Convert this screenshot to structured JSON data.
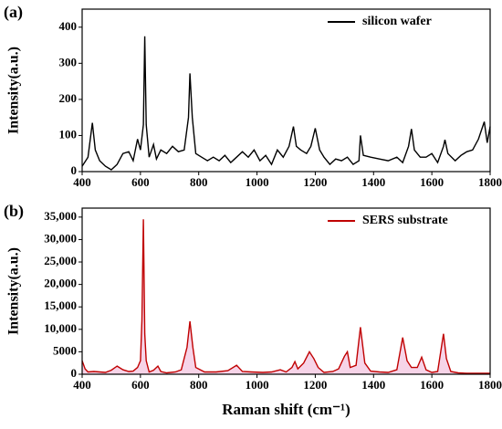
{
  "chart_data": [
    {
      "type": "line",
      "annotation": "(a)",
      "ylabel": "Intensity(a.u.)",
      "legend": "upper right",
      "xlim": [
        400,
        1800
      ],
      "xticks": [
        400,
        600,
        800,
        1000,
        1200,
        1400,
        1600,
        1800
      ],
      "ylim": [
        0,
        450
      ],
      "yticks": [
        0,
        100,
        200,
        300,
        400
      ],
      "series": [
        {
          "name": "silicon wafer",
          "color": "#000000",
          "x": [
            400,
            420,
            435,
            445,
            460,
            480,
            500,
            520,
            540,
            560,
            575,
            590,
            600,
            610,
            615,
            620,
            630,
            645,
            655,
            670,
            690,
            710,
            730,
            750,
            765,
            770,
            778,
            790,
            810,
            830,
            850,
            870,
            890,
            910,
            930,
            950,
            970,
            990,
            1010,
            1030,
            1050,
            1070,
            1090,
            1110,
            1125,
            1135,
            1150,
            1170,
            1185,
            1200,
            1215,
            1230,
            1250,
            1270,
            1290,
            1310,
            1330,
            1350,
            1355,
            1365,
            1390,
            1420,
            1450,
            1480,
            1500,
            1520,
            1530,
            1540,
            1560,
            1580,
            1600,
            1620,
            1640,
            1645,
            1655,
            1680,
            1700,
            1720,
            1740,
            1760,
            1780,
            1790,
            1800
          ],
          "values": [
            15,
            40,
            135,
            60,
            30,
            15,
            5,
            20,
            50,
            55,
            30,
            90,
            60,
            130,
            375,
            130,
            40,
            75,
            35,
            60,
            50,
            70,
            55,
            60,
            150,
            272,
            150,
            50,
            40,
            30,
            40,
            30,
            45,
            25,
            40,
            55,
            40,
            60,
            30,
            45,
            20,
            60,
            40,
            70,
            125,
            70,
            60,
            50,
            70,
            120,
            60,
            40,
            20,
            35,
            30,
            40,
            20,
            30,
            100,
            45,
            40,
            35,
            30,
            40,
            25,
            70,
            118,
            60,
            40,
            40,
            50,
            25,
            70,
            88,
            50,
            30,
            45,
            55,
            60,
            90,
            138,
            80,
            125
          ]
        }
      ]
    },
    {
      "type": "line",
      "annotation": "(b)",
      "ylabel": "Intensity(a.u.)",
      "xlabel": "Raman shift (cm⁻¹)",
      "legend": "upper right",
      "fill": "#f0b8d8",
      "xlim": [
        400,
        1800
      ],
      "xticks": [
        400,
        600,
        800,
        1000,
        1200,
        1400,
        1600,
        1800
      ],
      "ylim": [
        0,
        37000
      ],
      "yticks": [
        0,
        5000,
        {
          "value": 10000,
          "label": "10,000"
        },
        {
          "value": 15000,
          "label": "15,000"
        },
        {
          "value": 20000,
          "label": "20,000"
        },
        {
          "value": 25000,
          "label": "25,000"
        },
        {
          "value": 30000,
          "label": "30,000"
        },
        {
          "value": 35000,
          "label": "35,000"
        }
      ],
      "series": [
        {
          "name": "SERS substrate",
          "color": "#c00000",
          "x": [
            400,
            410,
            420,
            440,
            460,
            480,
            500,
            520,
            540,
            560,
            575,
            590,
            600,
            605,
            610,
            615,
            620,
            630,
            645,
            660,
            670,
            690,
            720,
            740,
            760,
            770,
            780,
            790,
            820,
            860,
            900,
            930,
            950,
            980,
            1020,
            1050,
            1080,
            1100,
            1120,
            1130,
            1140,
            1160,
            1180,
            1195,
            1210,
            1230,
            1260,
            1280,
            1300,
            1310,
            1320,
            1340,
            1355,
            1370,
            1390,
            1420,
            1450,
            1480,
            1500,
            1515,
            1530,
            1550,
            1565,
            1580,
            1600,
            1620,
            1640,
            1650,
            1665,
            1690,
            1720,
            1760,
            1800
          ],
          "values": [
            3000,
            1200,
            500,
            600,
            500,
            400,
            900,
            1800,
            1000,
            600,
            700,
            1500,
            3000,
            12000,
            34500,
            9000,
            3000,
            500,
            900,
            1800,
            600,
            300,
            500,
            1000,
            6000,
            11800,
            6000,
            1500,
            500,
            500,
            800,
            2000,
            600,
            500,
            400,
            500,
            1000,
            500,
            1500,
            2800,
            1200,
            2500,
            5000,
            3500,
            1500,
            400,
            600,
            1200,
            4000,
            5000,
            1500,
            2000,
            10500,
            2500,
            700,
            500,
            400,
            1000,
            8200,
            3000,
            1500,
            1500,
            3800,
            1000,
            400,
            600,
            9000,
            3500,
            600,
            300,
            200,
            200,
            200
          ]
        }
      ]
    }
  ]
}
